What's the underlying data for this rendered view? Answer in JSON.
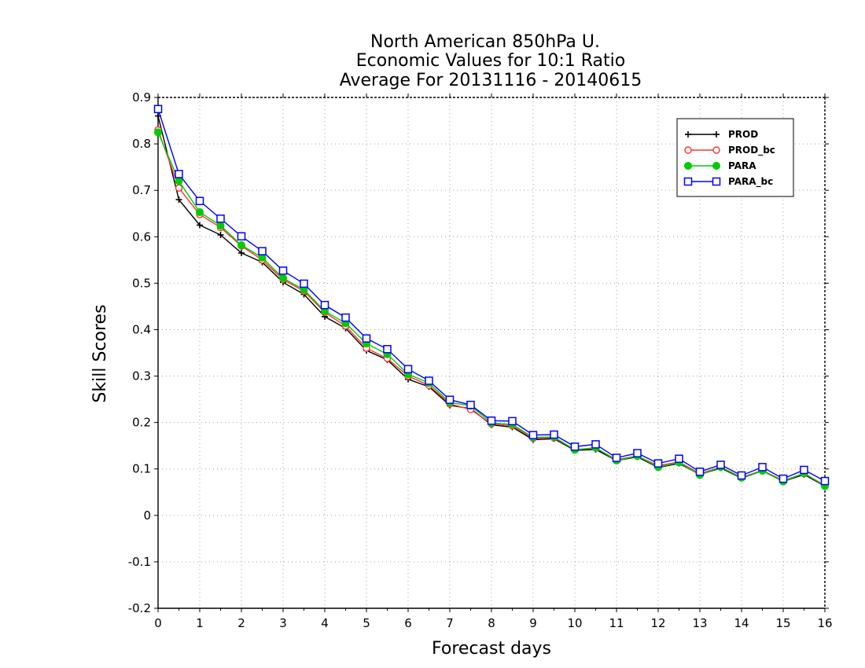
{
  "chart_data": {
    "type": "line",
    "title_lines": [
      "North American 850hPa U.",
      "Economic Values for 10:1 Ratio",
      "Average For 20131116 - 20140615"
    ],
    "xlabel": "Forecast days",
    "ylabel": "Skill Scores",
    "xlim": [
      0,
      16
    ],
    "ylim": [
      -0.2,
      0.9
    ],
    "x_ticks": [
      0,
      1,
      2,
      3,
      4,
      5,
      6,
      7,
      8,
      9,
      10,
      11,
      12,
      13,
      14,
      15,
      16
    ],
    "y_ticks": [
      -0.2,
      -0.1,
      0,
      0.1,
      0.2,
      0.3,
      0.4,
      0.5,
      0.6,
      0.7,
      0.8,
      0.9
    ],
    "y_tick_labels": [
      "-0.2",
      "-0.1",
      "0",
      "0.1",
      "0.2",
      "0.3",
      "0.4",
      "0.5",
      "0.6",
      "0.7",
      "0.8",
      "0.9"
    ],
    "grid": true,
    "legend_position": "top-right",
    "x": [
      0,
      0.5,
      1,
      1.5,
      2,
      2.5,
      3,
      3.5,
      4,
      4.5,
      5,
      5.5,
      6,
      6.5,
      7,
      7.5,
      8,
      8.5,
      9,
      9.5,
      10,
      10.5,
      11,
      11.5,
      12,
      12.5,
      13,
      13.5,
      14,
      14.5,
      15,
      15.5,
      16
    ],
    "series": [
      {
        "name": "PROD",
        "color": "#000000",
        "marker": "plus",
        "values": [
          0.86,
          0.68,
          0.625,
          0.604,
          0.565,
          0.545,
          0.502,
          0.476,
          0.428,
          0.403,
          0.355,
          0.335,
          0.293,
          0.277,
          0.237,
          0.23,
          0.195,
          0.19,
          0.163,
          0.165,
          0.14,
          0.142,
          0.118,
          0.126,
          0.103,
          0.112,
          0.088,
          0.102,
          0.08,
          0.096,
          0.073,
          0.088,
          0.063
        ]
      },
      {
        "name": "PROD_bc",
        "color": "#ff3333",
        "marker": "open-circle",
        "values": [
          0.83,
          0.705,
          0.648,
          0.62,
          0.58,
          0.55,
          0.508,
          0.483,
          0.437,
          0.408,
          0.36,
          0.338,
          0.3,
          0.28,
          0.24,
          0.228,
          0.197,
          0.193,
          0.166,
          0.167,
          0.142,
          0.145,
          0.12,
          0.128,
          0.107,
          0.115,
          0.09,
          0.104,
          0.082,
          0.097,
          0.075,
          0.09,
          0.065
        ]
      },
      {
        "name": "PARA",
        "color": "#00cc00",
        "marker": "filled-circle",
        "values": [
          0.825,
          0.72,
          0.653,
          0.624,
          0.582,
          0.555,
          0.511,
          0.486,
          0.44,
          0.414,
          0.37,
          0.347,
          0.304,
          0.285,
          0.243,
          0.236,
          0.199,
          0.196,
          0.168,
          0.169,
          0.141,
          0.146,
          0.118,
          0.128,
          0.104,
          0.114,
          0.087,
          0.104,
          0.081,
          0.096,
          0.073,
          0.091,
          0.063
        ]
      },
      {
        "name": "PARA_bc",
        "color": "#0000ff",
        "marker": "open-square",
        "values": [
          0.875,
          0.735,
          0.677,
          0.639,
          0.601,
          0.569,
          0.527,
          0.499,
          0.453,
          0.426,
          0.381,
          0.358,
          0.315,
          0.29,
          0.249,
          0.238,
          0.204,
          0.203,
          0.173,
          0.174,
          0.148,
          0.153,
          0.124,
          0.134,
          0.112,
          0.122,
          0.094,
          0.109,
          0.086,
          0.104,
          0.079,
          0.098,
          0.074
        ]
      }
    ]
  }
}
